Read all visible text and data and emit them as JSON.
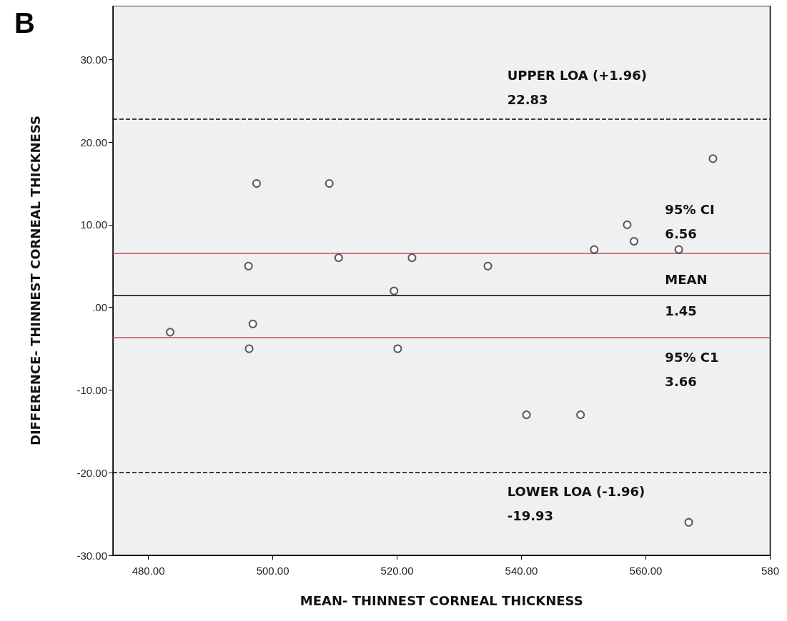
{
  "chart_data": {
    "type": "scatter",
    "xlabel": "MEAN- THINNEST CORNEAL THICKNESS",
    "ylabel": "DIFFERENCE- THINNEST CORNEAL THICKNESS",
    "annotations": [
      "B"
    ],
    "series": [
      {
        "color": "#333333",
        "x": [
          483.5,
          496.1,
          497.4,
          496.8,
          496.2,
          509.1,
          510.6,
          519.5,
          520.1,
          522.4,
          534.6,
          540.8,
          549.5,
          551.7,
          557.0,
          558.1,
          565.3,
          570.8,
          566.9
        ],
        "values": [
          -3,
          5,
          15,
          -2,
          -5,
          15,
          6,
          2,
          -5,
          6,
          5,
          -13,
          -13,
          7,
          10,
          8,
          7,
          18,
          -26
        ]
      }
    ],
    "marker": "circle",
    "grid": false,
    "xlim": [
      474.3,
      580
    ],
    "ylim": [
      -30,
      36.5
    ],
    "xticks": [
      {
        "value": 480,
        "label": "480.00"
      },
      {
        "value": 500,
        "label": "500.00"
      },
      {
        "value": 520,
        "label": "520.00"
      },
      {
        "value": 540,
        "label": "540.00"
      },
      {
        "value": 560,
        "label": "560.00"
      },
      {
        "value": 580,
        "label": "580"
      }
    ],
    "yticks": [
      {
        "value": -30,
        "label": "-30.00"
      },
      {
        "value": -20,
        "label": "-20.00"
      },
      {
        "value": -10,
        "label": "-10.00"
      },
      {
        "value": 0,
        "label": ".00"
      },
      {
        "value": 10,
        "label": "10.00"
      },
      {
        "value": 20,
        "label": "20.00"
      },
      {
        "value": 30,
        "label": "30.00"
      }
    ],
    "ref_lines": [
      {
        "axis": "y",
        "value": 22.83,
        "label": "UPPER LOA (+1.96)\n22.83",
        "color": "#000000",
        "line_style": "dashed"
      },
      {
        "axis": "y",
        "value": 6.56,
        "label": "95% CI\n6.56",
        "color": "#c8484f",
        "line_style": "solid"
      },
      {
        "axis": "y",
        "value": 1.45,
        "label": "MEAN\n1.45",
        "color": "#000000",
        "line_style": "solid"
      },
      {
        "axis": "y",
        "value": -3.66,
        "label": "95% C1\n3.66",
        "color": "#c8484f",
        "line_style": "solid"
      },
      {
        "axis": "y",
        "value": -19.93,
        "label": "LOWER LOA (-1.96)\n-19.93",
        "color": "#000000",
        "line_style": "dashed"
      }
    ]
  }
}
